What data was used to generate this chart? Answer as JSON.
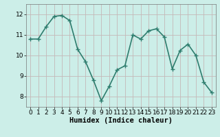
{
  "x": [
    0,
    1,
    2,
    3,
    4,
    5,
    6,
    7,
    8,
    9,
    10,
    11,
    12,
    13,
    14,
    15,
    16,
    17,
    18,
    19,
    20,
    21,
    22,
    23
  ],
  "y": [
    10.8,
    10.8,
    11.4,
    11.9,
    11.95,
    11.7,
    10.3,
    9.7,
    8.8,
    7.8,
    8.5,
    9.3,
    9.5,
    11.0,
    10.8,
    11.2,
    11.3,
    10.9,
    9.35,
    10.25,
    10.55,
    10.0,
    8.7,
    8.2
  ],
  "line_color": "#2e7d6e",
  "marker": "+",
  "marker_size": 4,
  "bg_color": "#cceee8",
  "grid_color": "#c4b8b8",
  "xlabel": "Humidex (Indice chaleur)",
  "ylim": [
    7.5,
    12.5
  ],
  "xlim": [
    -0.5,
    23.5
  ],
  "yticks": [
    8,
    9,
    10,
    11,
    12
  ],
  "xticks": [
    0,
    1,
    2,
    3,
    4,
    5,
    6,
    7,
    8,
    9,
    10,
    11,
    12,
    13,
    14,
    15,
    16,
    17,
    18,
    19,
    20,
    21,
    22,
    23
  ],
  "xlabel_fontsize": 7.5,
  "tick_fontsize": 6.5,
  "linewidth": 1.2,
  "marker_linewidth": 1.0
}
